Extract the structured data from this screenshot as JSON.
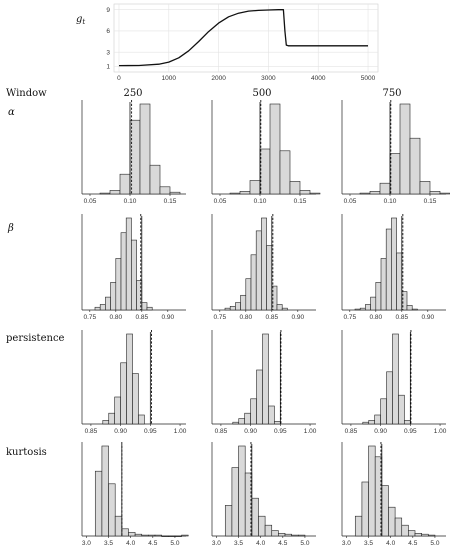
{
  "labels": {
    "window": "Window",
    "g_label": "g",
    "g_sub": "t",
    "windows": [
      "250",
      "500",
      "750"
    ],
    "rows": [
      "α",
      "β",
      "persistence",
      "kurtosis"
    ]
  },
  "chart_data": [
    {
      "type": "line",
      "ylabel": "g_t",
      "xticks": [
        0,
        1000,
        2000,
        3000,
        4000,
        5000
      ],
      "yticks": [
        1,
        3,
        6,
        9
      ],
      "xlim": [
        -100,
        5200
      ],
      "ylim": [
        0.2,
        9.8
      ],
      "x": [
        0,
        400,
        800,
        1000,
        1200,
        1400,
        1600,
        1800,
        2000,
        2200,
        2400,
        2600,
        2800,
        3000,
        3200,
        3300,
        3330,
        3360,
        3400,
        4000,
        5000
      ],
      "y": [
        1.1,
        1.12,
        1.3,
        1.6,
        2.2,
        3.2,
        4.5,
        5.9,
        7.1,
        8.0,
        8.5,
        8.8,
        8.9,
        8.95,
        9.0,
        9.0,
        6.0,
        4.0,
        3.9,
        3.9,
        3.9
      ],
      "grid": true
    },
    {
      "type": "histogram_grid",
      "columns": [
        "250",
        "500",
        "750"
      ],
      "rows": [
        {
          "name": "α",
          "xticks": [
            0.05,
            0.1,
            0.15
          ],
          "xlim": [
            0.04,
            0.17
          ],
          "bin_start": 0.0625,
          "bin_width": 0.0125,
          "true_value": 0.1,
          "panels": [
            {
              "counts": [
                1,
                4,
                22,
                82,
                100,
                32,
                8,
                2
              ],
              "vline": 0.102
            },
            {
              "counts": [
                1,
                3,
                15,
                50,
                100,
                48,
                14,
                4,
                1
              ],
              "vline": 0.101
            },
            {
              "counts": [
                1,
                3,
                12,
                45,
                100,
                62,
                14,
                3,
                1
              ],
              "vline": 0.101
            }
          ]
        },
        {
          "name": "β",
          "xticks": [
            0.75,
            0.8,
            0.85,
            0.9
          ],
          "xlim": [
            0.735,
            0.935
          ],
          "bin_start": 0.76,
          "bin_width": 0.01,
          "true_value": 0.85,
          "panels": [
            {
              "counts": [
                3,
                6,
                14,
                30,
                56,
                84,
                100,
                76,
                32,
                8,
                3
              ],
              "vline": 0.848
            },
            {
              "counts": [
                2,
                4,
                8,
                16,
                34,
                60,
                86,
                100,
                70,
                26,
                6,
                2
              ],
              "vline": 0.852
            },
            {
              "counts": [
                1,
                2,
                6,
                14,
                30,
                56,
                88,
                100,
                62,
                20,
                5,
                1
              ],
              "vline": 0.852
            }
          ]
        },
        {
          "name": "persistence",
          "xticks": [
            0.85,
            0.9,
            0.95,
            1.0
          ],
          "xlim": [
            0.835,
            1.01
          ],
          "bin_start": 0.87,
          "bin_width": 0.01,
          "true_value": 0.95,
          "panels": [
            {
              "counts": [
                4,
                12,
                30,
                68,
                100,
                56,
                10
              ],
              "vline": 0.952
            },
            {
              "counts": [
                2,
                6,
                12,
                28,
                60,
                100,
                20,
                3
              ],
              "vline": 0.951
            },
            {
              "counts": [
                2,
                4,
                10,
                28,
                58,
                100,
                32,
                4
              ],
              "vline": 0.951
            }
          ]
        },
        {
          "name": "kurtosis",
          "xticks": [
            3.0,
            3.5,
            4.0,
            4.5,
            5.0
          ],
          "xlim": [
            2.9,
            5.25
          ],
          "bin_start": 3.2,
          "bin_width": 0.15,
          "true_value": 3.8,
          "panels": [
            {
              "counts": [
                72,
                100,
                58,
                22,
                8,
                4,
                2,
                1,
                1,
                1,
                0,
                0,
                0,
                1
              ],
              "vline": 3.8
            },
            {
              "counts": [
                34,
                76,
                100,
                70,
                42,
                22,
                12,
                6,
                3,
                2,
                1,
                1
              ],
              "vline": 3.78
            },
            {
              "counts": [
                22,
                60,
                100,
                88,
                56,
                32,
                20,
                12,
                6,
                3,
                2,
                1
              ],
              "vline": 3.78
            }
          ]
        }
      ]
    }
  ]
}
